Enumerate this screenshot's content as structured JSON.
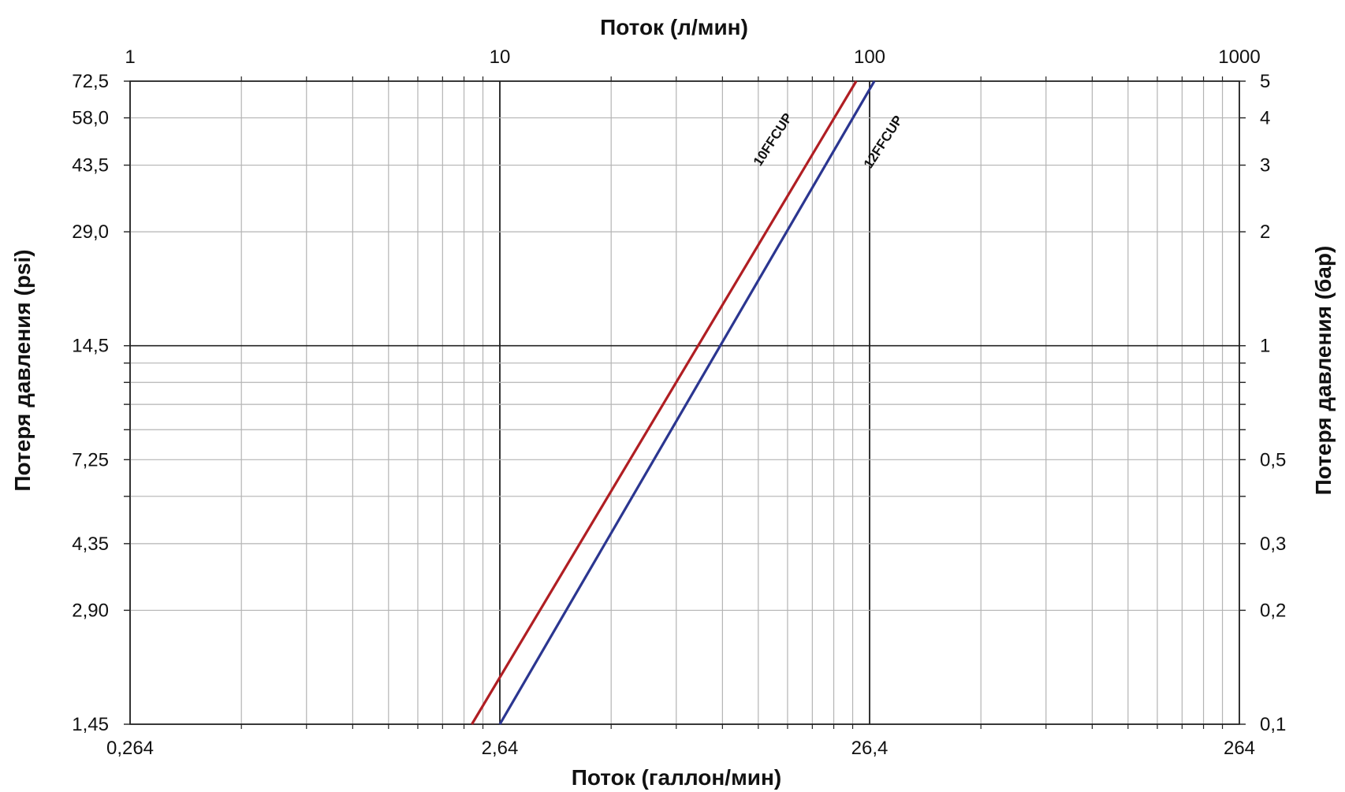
{
  "chart_data": {
    "type": "line",
    "x_scale": "log",
    "y_scale": "log",
    "grid": true,
    "x_top_title": "Поток (л/мин)",
    "x_bottom_title": "Поток (галлон/мин)",
    "y_left_title": "Потеря давления (psi)",
    "y_right_title": "Потеря давления (бар)",
    "xlim_lpm": [
      1,
      1000
    ],
    "ylim_bar": [
      0.1,
      5
    ],
    "x_top_ticks": [
      {
        "value": 1,
        "label": "1"
      },
      {
        "value": 10,
        "label": "10"
      },
      {
        "value": 100,
        "label": "100"
      },
      {
        "value": 1000,
        "label": "1000"
      }
    ],
    "x_bottom_ticks": [
      {
        "value": 1,
        "label": "0,264"
      },
      {
        "value": 10,
        "label": "2,64"
      },
      {
        "value": 100,
        "label": "26,4"
      },
      {
        "value": 1000,
        "label": "264"
      }
    ],
    "y_left_ticks": [
      {
        "value": 5,
        "label": "72,5"
      },
      {
        "value": 4,
        "label": "58,0"
      },
      {
        "value": 3,
        "label": "43,5"
      },
      {
        "value": 2,
        "label": "29,0"
      },
      {
        "value": 1,
        "label": "14,5"
      },
      {
        "value": 0.5,
        "label": "7,25"
      },
      {
        "value": 0.3,
        "label": "4,35"
      },
      {
        "value": 0.2,
        "label": "2,90"
      },
      {
        "value": 0.1,
        "label": "1,45"
      }
    ],
    "y_right_ticks": [
      {
        "value": 5,
        "label": "5"
      },
      {
        "value": 4,
        "label": "4"
      },
      {
        "value": 3,
        "label": "3"
      },
      {
        "value": 2,
        "label": "2"
      },
      {
        "value": 1,
        "label": "1"
      },
      {
        "value": 0.5,
        "label": "0,5"
      },
      {
        "value": 0.3,
        "label": "0,3"
      },
      {
        "value": 0.2,
        "label": "0,2"
      },
      {
        "value": 0.1,
        "label": "0,1"
      }
    ],
    "series": [
      {
        "name": "10FFCUP",
        "color": "#b01e23",
        "points": [
          [
            8.4,
            0.1
          ],
          [
            92,
            5
          ]
        ]
      },
      {
        "name": "12FFCUP",
        "color": "#2b3690",
        "points": [
          [
            10,
            0.1
          ],
          [
            103,
            5
          ]
        ]
      }
    ]
  }
}
